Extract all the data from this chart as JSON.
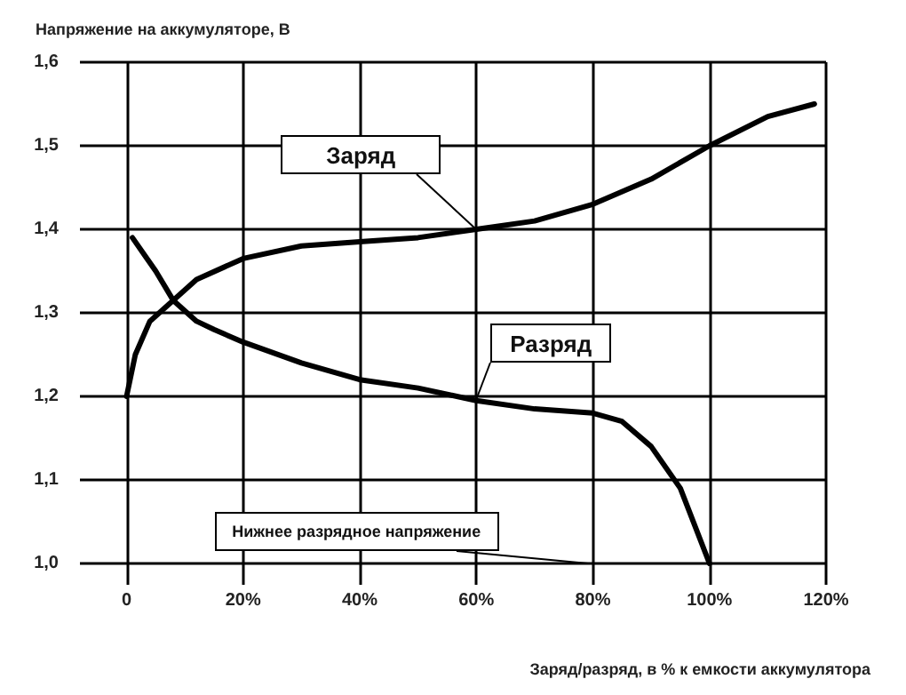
{
  "chart_data": {
    "type": "line",
    "ylabel": "Напряжение на аккумуляторе, В",
    "xlabel": "Заряд/разряд, в % к емкости аккумулятора",
    "xlim": [
      -8,
      120
    ],
    "xticks": [
      {
        "value": 0,
        "label": "0"
      },
      {
        "value": 20,
        "label": "20%"
      },
      {
        "value": 40,
        "label": "40%"
      },
      {
        "value": 60,
        "label": "60%"
      },
      {
        "value": 80,
        "label": "80%"
      },
      {
        "value": 100,
        "label": "100%"
      },
      {
        "value": 120,
        "label": "120%"
      }
    ],
    "ylim": [
      1.0,
      1.6
    ],
    "yticks": [
      {
        "value": 1.0,
        "label": "1,0"
      },
      {
        "value": 1.1,
        "label": "1,1"
      },
      {
        "value": 1.2,
        "label": "1,2"
      },
      {
        "value": 1.3,
        "label": "1,3"
      },
      {
        "value": 1.4,
        "label": "1,4"
      },
      {
        "value": 1.5,
        "label": "1,5"
      },
      {
        "value": 1.6,
        "label": "1,6"
      }
    ],
    "grid": true,
    "marker": "none",
    "line_style": "solid",
    "series": [
      {
        "color": "#000000",
        "x": [
          0,
          1.5,
          4,
          8,
          12,
          20,
          30,
          40,
          50,
          60,
          70,
          80,
          90,
          100,
          110,
          118
        ],
        "values": [
          1.2,
          1.25,
          1.29,
          1.315,
          1.34,
          1.365,
          1.38,
          1.385,
          1.39,
          1.4,
          1.41,
          1.43,
          1.46,
          1.5,
          1.535,
          1.55
        ]
      },
      {
        "color": "#000000",
        "x": [
          1,
          3,
          5,
          8,
          12,
          15,
          20,
          30,
          40,
          50,
          60,
          70,
          80,
          85,
          90,
          95,
          100
        ],
        "values": [
          1.39,
          1.37,
          1.35,
          1.315,
          1.29,
          1.28,
          1.265,
          1.24,
          1.22,
          1.21,
          1.195,
          1.185,
          1.18,
          1.17,
          1.14,
          1.09,
          1.0
        ]
      }
    ],
    "annotations": [
      {
        "text": "Заряд",
        "x": 60,
        "y": 1.4
      },
      {
        "text": "Разряд",
        "x": 60,
        "y": 1.195
      },
      "Нижнее разрядное напряжение"
    ]
  }
}
